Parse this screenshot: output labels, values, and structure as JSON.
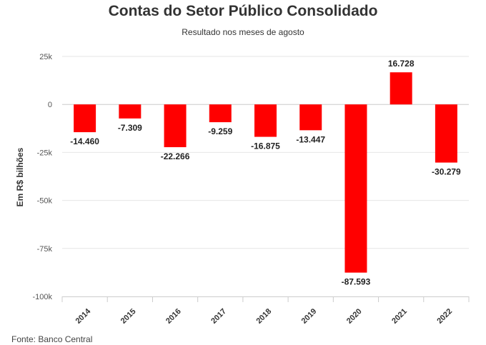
{
  "chart_data": {
    "type": "bar",
    "title": "Contas do Setor Público Consolidado",
    "subtitle": "Resultado nos meses de agosto",
    "ylabel": "Em R$ bilhões",
    "xlabel": "",
    "categories": [
      "2014",
      "2015",
      "2016",
      "2017",
      "2018",
      "2019",
      "2020",
      "2021",
      "2022"
    ],
    "values": [
      -14460,
      -7309,
      -22266,
      -9259,
      -16875,
      -13447,
      -87593,
      16728,
      -30279
    ],
    "data_labels": [
      "-14.460",
      "-7.309",
      "-22.266",
      "-9.259",
      "-16.875",
      "-13.447",
      "-87.593",
      "16.728",
      "-30.279"
    ],
    "ylim": [
      -100000,
      25000
    ],
    "yticks": [
      25000,
      0,
      -25000,
      -50000,
      -75000,
      -100000
    ],
    "ytick_labels": [
      "25k",
      "0",
      "-25k",
      "-50k",
      "-75k",
      "-100k"
    ],
    "bar_color": "#ff0000",
    "grid": true,
    "legend": "none"
  },
  "source": "Fonte: Banco Central"
}
